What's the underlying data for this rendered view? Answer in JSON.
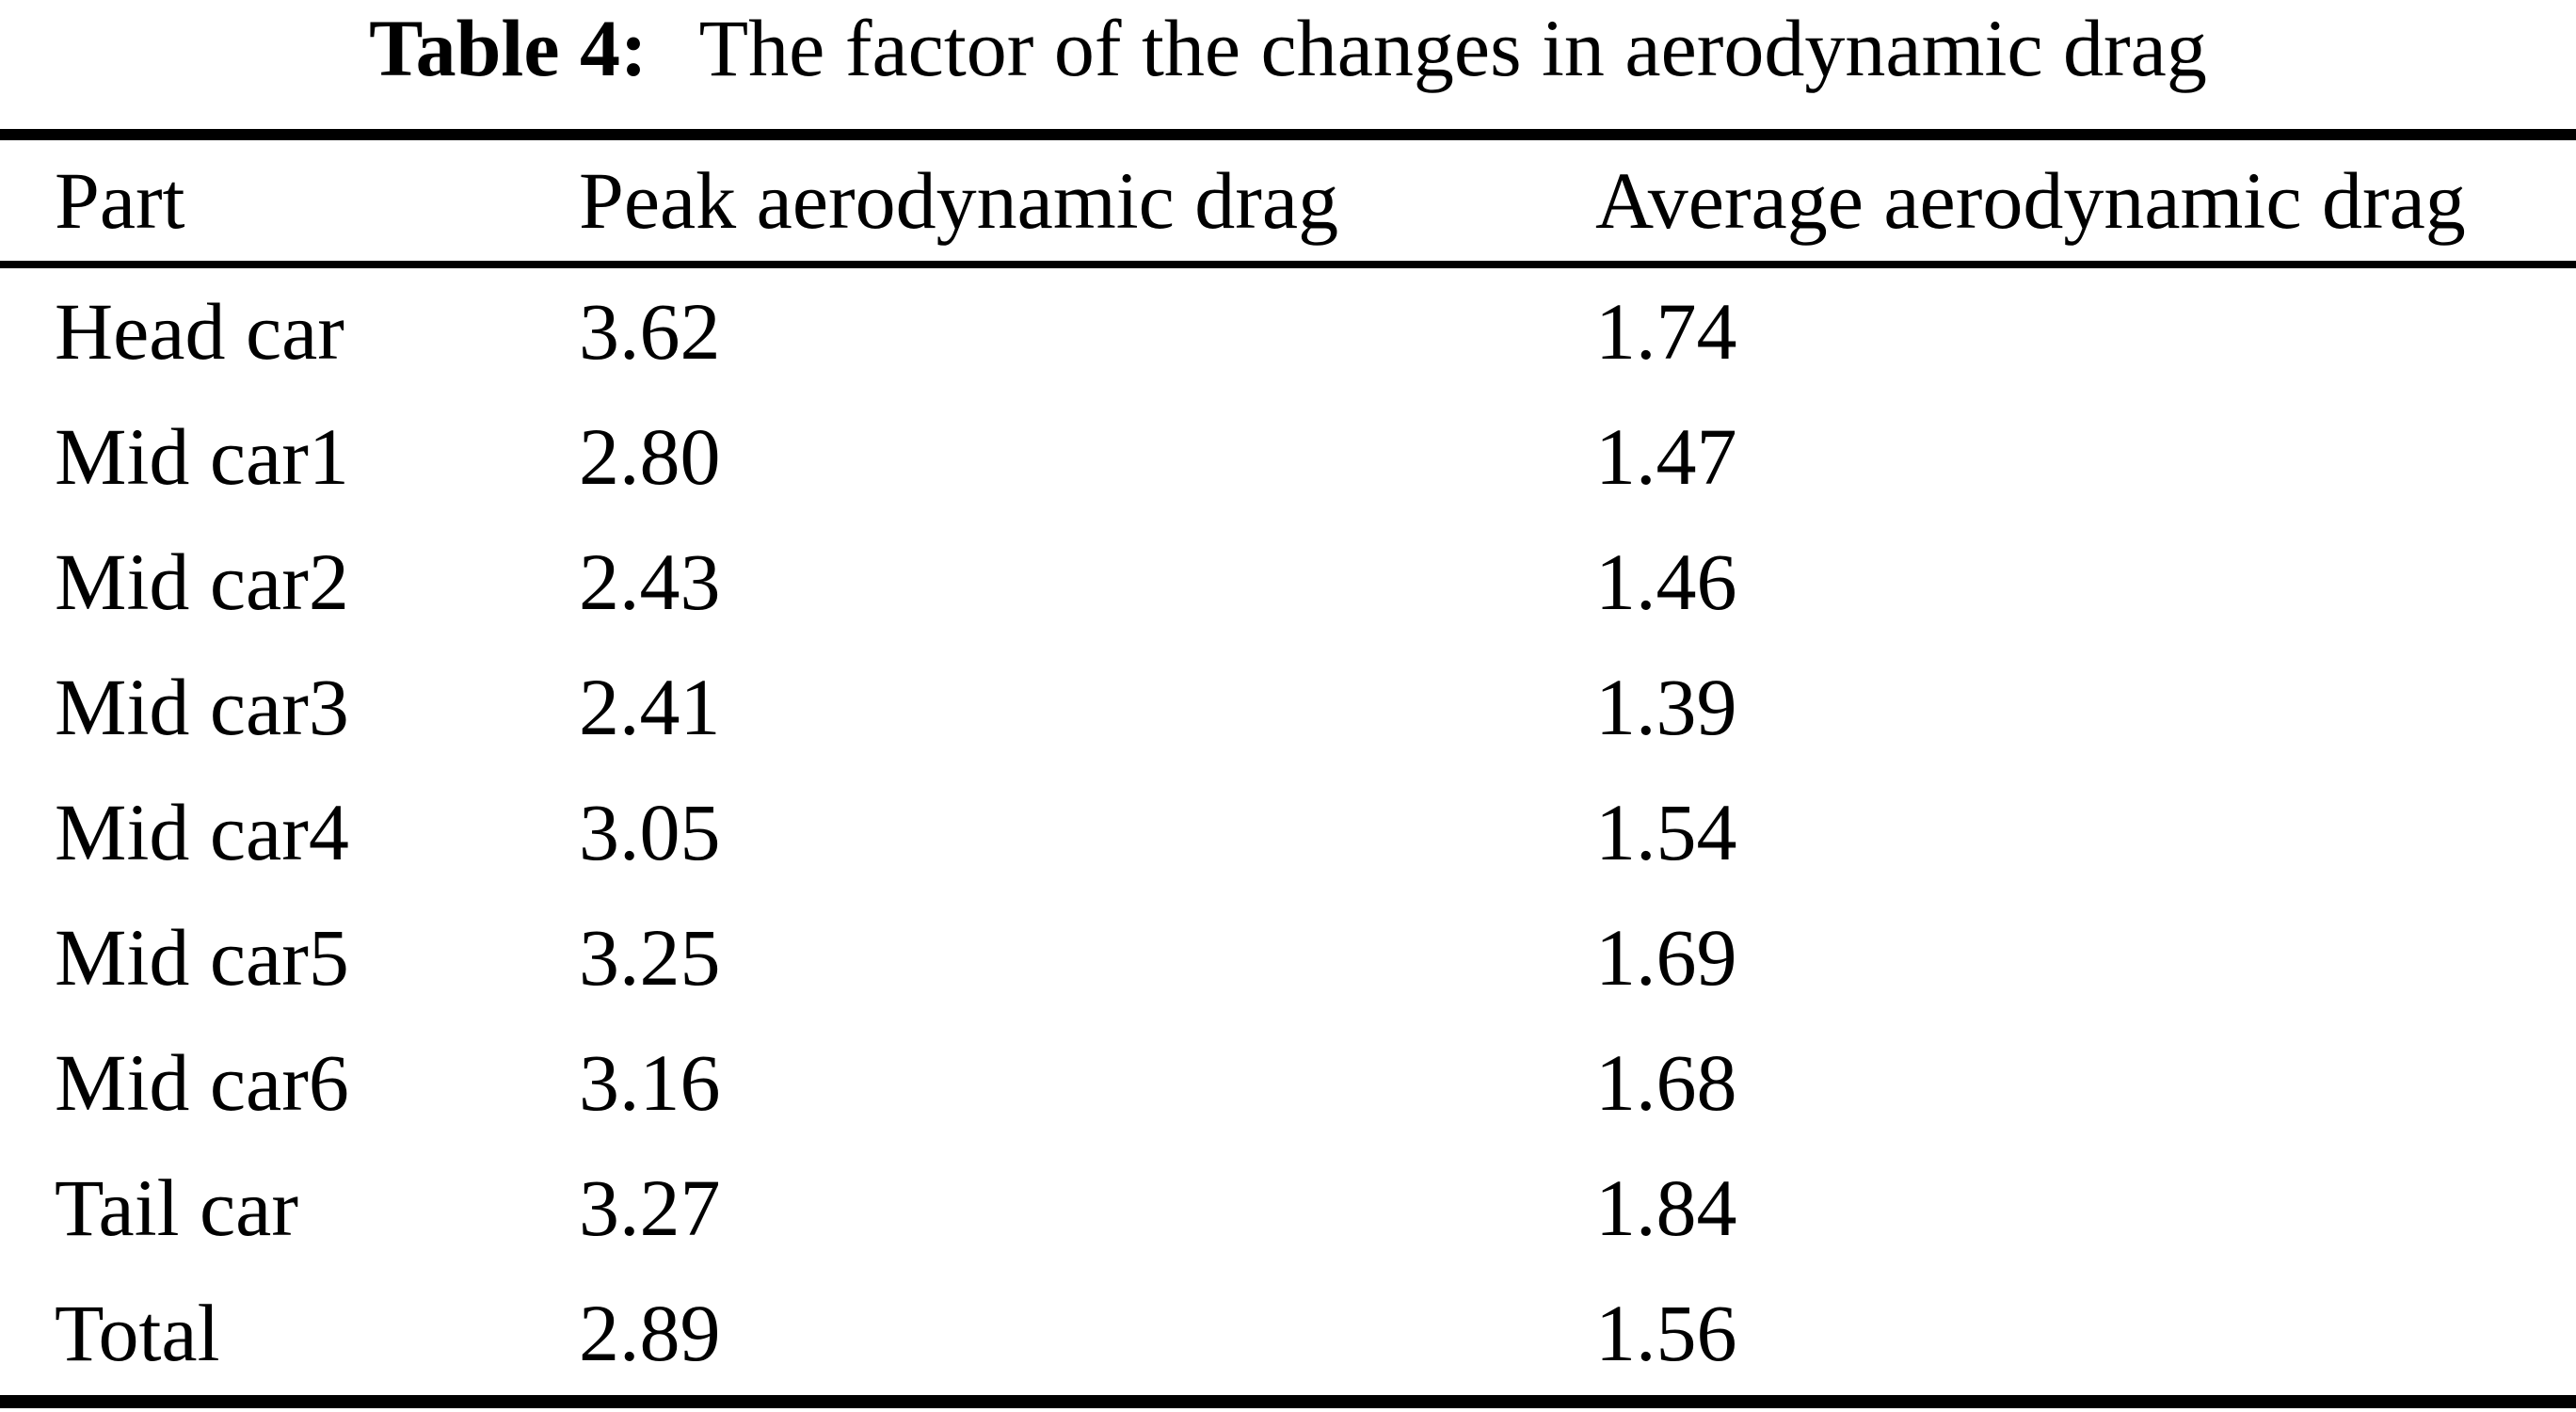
{
  "title": {
    "label": "Table 4:",
    "caption": "The factor of the changes in aerodynamic drag"
  },
  "table": {
    "columns": [
      "Part",
      "Peak aerodynamic drag",
      "Average aerodynamic drag"
    ],
    "rows": [
      {
        "part": "Head car",
        "peak": "3.62",
        "average": "1.74"
      },
      {
        "part": "Mid car1",
        "peak": "2.80",
        "average": "1.47"
      },
      {
        "part": "Mid car2",
        "peak": "2.43",
        "average": "1.46"
      },
      {
        "part": "Mid car3",
        "peak": "2.41",
        "average": "1.39"
      },
      {
        "part": "Mid car4",
        "peak": "3.05",
        "average": "1.54"
      },
      {
        "part": "Mid car5",
        "peak": "3.25",
        "average": "1.69"
      },
      {
        "part": "Mid car6",
        "peak": "3.16",
        "average": "1.68"
      },
      {
        "part": "Tail car",
        "peak": "3.27",
        "average": "1.84"
      },
      {
        "part": "Total",
        "peak": "2.89",
        "average": "1.56"
      }
    ]
  },
  "colors": {
    "background": "#ffffff",
    "text": "#000000",
    "rule": "#000000"
  }
}
